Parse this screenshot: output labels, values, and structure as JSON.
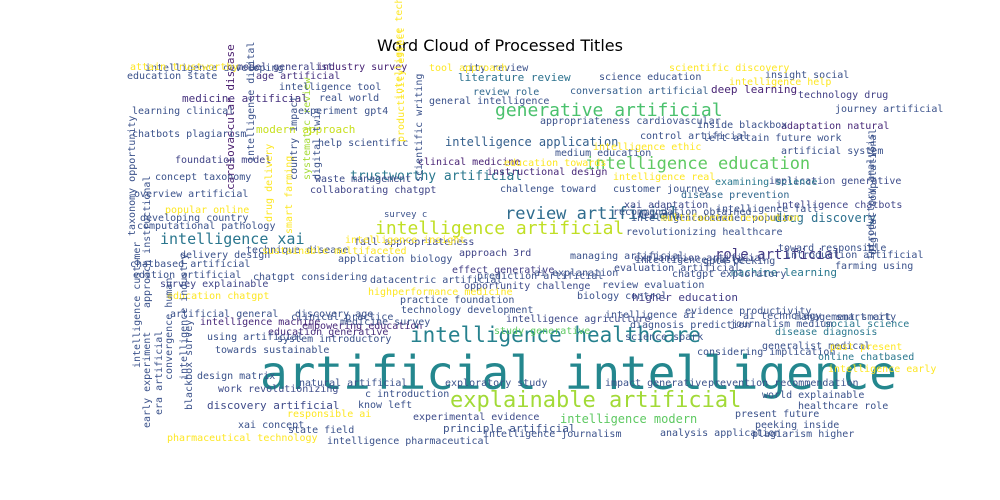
{
  "title": "Word Cloud of Processed Titles",
  "words": [
    {
      "text": "artificial intelligence",
      "color": "#24878e"
    },
    {
      "text": "explainable artificial",
      "color": "#a2da37"
    },
    {
      "text": "intelligence healthcare",
      "color": "#26818e"
    },
    {
      "text": "generative artificial",
      "color": "#4ac16d"
    },
    {
      "text": "intelligence artificial",
      "color": "#c0df25"
    },
    {
      "text": "review artificial",
      "color": "#2f6c8e"
    },
    {
      "text": "intelligence education",
      "color": "#5ec962"
    },
    {
      "text": "intelligence xai",
      "color": "#2a768e"
    },
    {
      "text": "role artificial",
      "color": "#443a83"
    },
    {
      "text": "trustworthy artificial",
      "color": "#2a788e"
    },
    {
      "text": "intelligence application",
      "color": "#35608d"
    },
    {
      "text": "drug discovery",
      "color": "#2d708e"
    },
    {
      "text": "intelligence modern",
      "color": "#5ec962"
    },
    {
      "text": "literature review",
      "color": "#2c728e"
    },
    {
      "text": "medicine artificial",
      "color": "#46327e"
    },
    {
      "text": "modern approach",
      "color": "#c8e020"
    },
    {
      "text": "discovery artificial",
      "color": "#3e4a89"
    },
    {
      "text": "higher education",
      "color": "#433e85"
    },
    {
      "text": "machine learning",
      "color": "#2a788e"
    },
    {
      "text": "principle artificial",
      "color": "#3b528b"
    },
    {
      "text": "cardiovascular disease",
      "color": "#481c6e"
    },
    {
      "text": "deep learning",
      "color": "#482475"
    },
    {
      "text": "review role",
      "color": "#31688e"
    },
    {
      "text": "approach 3rd",
      "color": "#414487"
    },
    {
      "text": "intelligence chatbots",
      "color": "#404688"
    },
    {
      "text": "intelligence machine",
      "color": "#482878"
    },
    {
      "text": "survey explainable",
      "color": "#404688"
    },
    {
      "text": "disease diagnosis",
      "color": "#2a788e"
    },
    {
      "text": "age artificial",
      "color": "#46317e"
    },
    {
      "text": "intelligence ai",
      "color": "#3b528b"
    },
    {
      "text": "systematic review",
      "color": "#a5db36"
    },
    {
      "text": "fall appropriateness",
      "color": "#3e4989"
    },
    {
      "text": "education generative",
      "color": "#472e7c"
    },
    {
      "text": "conversation artificial",
      "color": "#355f8d"
    },
    {
      "text": "intelligence tool",
      "color": "#3b518b"
    },
    {
      "text": "explanation artificial",
      "color": "#3e4a89"
    },
    {
      "text": "evaluation artificial",
      "color": "#3c4f8a"
    },
    {
      "text": "digital twin",
      "color": "#3b528b"
    },
    {
      "text": "effect generative",
      "color": "#433e85"
    },
    {
      "text": "experimental evidence",
      "color": "#3e4c8a"
    },
    {
      "text": "application biology",
      "color": "#3b528b"
    },
    {
      "text": "industry survey",
      "color": "#482374"
    },
    {
      "text": "model generalist",
      "color": "#414487"
    },
    {
      "text": "journey artificial",
      "color": "#3b528b"
    },
    {
      "text": "technology drug",
      "color": "#424186"
    },
    {
      "text": "foundation model",
      "color": "#414487"
    },
    {
      "text": "concept taxonomy",
      "color": "#3b528b"
    },
    {
      "text": "clinical medicine",
      "color": "#482173"
    },
    {
      "text": "waste management",
      "color": "#3e4c8a"
    },
    {
      "text": "collaborating chatgpt",
      "color": "#404588"
    },
    {
      "text": "instructional design",
      "color": "#482878"
    },
    {
      "text": "challenge toward",
      "color": "#3b528b"
    },
    {
      "text": "customer journey",
      "color": "#3b528b"
    },
    {
      "text": "xai adaptation",
      "color": "#3e4a89"
    },
    {
      "text": "disease prevention",
      "color": "#31688e"
    },
    {
      "text": "implication generative",
      "color": "#3e4c8a"
    },
    {
      "text": "control artificial",
      "color": "#3b528b"
    },
    {
      "text": "adaptation natural",
      "color": "#482878"
    },
    {
      "text": "artificial system",
      "color": "#3b528b"
    },
    {
      "text": "evidence productivity",
      "color": "#3b528b"
    },
    {
      "text": "intelligence agriculture",
      "color": "#3e4a89"
    },
    {
      "text": "study generative",
      "color": "#5ec962"
    },
    {
      "text": "opportunity challenge",
      "color": "#3e4c8a"
    },
    {
      "text": "prediction artificial",
      "color": "#3b528b"
    },
    {
      "text": "practice foundation",
      "color": "#3b528b"
    },
    {
      "text": "technology development",
      "color": "#3b528b"
    },
    {
      "text": "artificial general",
      "color": "#3b528b"
    },
    {
      "text": "discovery age",
      "color": "#3b528b"
    },
    {
      "text": "empowering education",
      "color": "#482878"
    },
    {
      "text": "system introductory",
      "color": "#3b528b"
    },
    {
      "text": "using artificial",
      "color": "#3b528b"
    },
    {
      "text": "towards sustainable",
      "color": "#3b528b"
    },
    {
      "text": "design matrix",
      "color": "#3b528b"
    },
    {
      "text": "work revolutionizing",
      "color": "#3e4c8a"
    },
    {
      "text": "natural artificial",
      "color": "#3b528b"
    },
    {
      "text": "exploratory study",
      "color": "#3b528b"
    },
    {
      "text": "impact generative",
      "color": "#3b528b"
    },
    {
      "text": "prevention recommendation",
      "color": "#3b528b"
    },
    {
      "text": "world explainable",
      "color": "#3b528b"
    },
    {
      "text": "healthcare role",
      "color": "#3b528b"
    },
    {
      "text": "present future",
      "color": "#3b528b"
    },
    {
      "text": "peeking inside",
      "color": "#3b528b"
    },
    {
      "text": "plagiarism higher",
      "color": "#3b528b"
    },
    {
      "text": "analysis application",
      "color": "#3b528b"
    },
    {
      "text": "intelligence journalism",
      "color": "#3b528b"
    },
    {
      "text": "intelligence pharmaceutical",
      "color": "#3b528b"
    },
    {
      "text": "state field",
      "color": "#3b528b"
    },
    {
      "text": "xai concept",
      "color": "#3b528b"
    },
    {
      "text": "know left",
      "color": "#3b528b"
    },
    {
      "text": "c introduction",
      "color": "#3b528b"
    },
    {
      "text": "pharmaceutical technology",
      "color": "#fde725"
    },
    {
      "text": "responsible ai",
      "color": "#fde725"
    },
    {
      "text": "management smart",
      "color": "#3b528b"
    },
    {
      "text": "smart city",
      "color": "#3b528b"
    },
    {
      "text": "social science",
      "color": "#2a788e"
    },
    {
      "text": "journalism medium",
      "color": "#3b528b"
    },
    {
      "text": "generalist medical",
      "color": "#3b528b"
    },
    {
      "text": "considering implication",
      "color": "#3b528b"
    },
    {
      "text": "online chatbased",
      "color": "#2a788e"
    },
    {
      "text": "past present",
      "color": "#fde725"
    },
    {
      "text": "intelligence early",
      "color": "#fde725"
    },
    {
      "text": "introduction artificial",
      "color": "#3b528b"
    },
    {
      "text": "toward responsible",
      "color": "#3b528b"
    },
    {
      "text": "farming using",
      "color": "#3b528b"
    },
    {
      "text": "chatgpt exploratory",
      "color": "#3b528b"
    },
    {
      "text": "gpt4 peeking",
      "color": "#3b528b"
    },
    {
      "text": "intelligence waste",
      "color": "#3b528b"
    },
    {
      "text": "intelligence new",
      "color": "#3b528b"
    },
    {
      "text": "obtained popular",
      "color": "#3b528b"
    },
    {
      "text": "new era",
      "color": "#3b528b"
    },
    {
      "text": "recommendation obtained",
      "color": "#3b528b"
    },
    {
      "text": "multifaceted revolution",
      "color": "#fde725"
    },
    {
      "text": "revolutionizing healthcare",
      "color": "#3b528b"
    },
    {
      "text": "examining science",
      "color": "#2a788e"
    },
    {
      "text": "intelligence real",
      "color": "#fde725"
    },
    {
      "text": "intelligence fall",
      "color": "#3b528b"
    },
    {
      "text": "inside blackbox",
      "color": "#3b528b"
    },
    {
      "text": "left attain future work",
      "color": "#3b528b"
    },
    {
      "text": "insight social",
      "color": "#3b528b"
    },
    {
      "text": "intelligence help",
      "color": "#fde725"
    },
    {
      "text": "science education",
      "color": "#3b528b"
    },
    {
      "text": "scientific discovery",
      "color": "#fde725"
    },
    {
      "text": "city review",
      "color": "#3b528b"
    },
    {
      "text": "tool approach",
      "color": "#fde725"
    },
    {
      "text": "general intelligence",
      "color": "#3b528b"
    },
    {
      "text": "appropriateness cardiovascular",
      "color": "#3b528b"
    },
    {
      "text": "intelligence ethic",
      "color": "#fde725"
    },
    {
      "text": "medium education",
      "color": "#3b528b"
    },
    {
      "text": "education towards",
      "color": "#fde725"
    },
    {
      "text": "help scientific",
      "color": "#3b528b"
    },
    {
      "text": "real world",
      "color": "#3b528b"
    },
    {
      "text": "experiment gpt4",
      "color": "#3b528b"
    },
    {
      "text": "learning clinical",
      "color": "#3b528b"
    },
    {
      "text": "chatbots plagiarism",
      "color": "#3b528b"
    },
    {
      "text": "education state",
      "color": "#3b528b"
    },
    {
      "text": "intelligence developing",
      "color": "#3b528b"
    },
    {
      "text": "attain trustworthy",
      "color": "#fde725"
    },
    {
      "text": "overview artificial",
      "color": "#3b528b"
    },
    {
      "text": "popular online",
      "color": "#fde725"
    },
    {
      "text": "developing country",
      "color": "#3b528b"
    },
    {
      "text": "computational pathology",
      "color": "#3b528b"
    },
    {
      "text": "delivery design",
      "color": "#3b528b"
    },
    {
      "text": "chatbased artificial",
      "color": "#3b528b"
    },
    {
      "text": "edition artificial",
      "color": "#3b528b"
    },
    {
      "text": "education chatgpt",
      "color": "#fde725"
    },
    {
      "text": "chatgpt considering",
      "color": "#3b528b"
    },
    {
      "text": "technique disease",
      "color": "#3b528b"
    },
    {
      "text": "sustainable multifaceted",
      "color": "#fde725"
    },
    {
      "text": "datacentric artificial",
      "color": "#3b528b"
    },
    {
      "text": "highperformance medicine",
      "color": "#fde725"
    },
    {
      "text": "managing artificial",
      "color": "#3b528b"
    },
    {
      "text": "ai explanation",
      "color": "#3b528b"
    },
    {
      "text": "biology control",
      "color": "#3b528b"
    },
    {
      "text": "review evaluation",
      "color": "#3b528b"
    },
    {
      "text": "science spark",
      "color": "#3b528b"
    },
    {
      "text": "diagnosis prediction",
      "color": "#3b528b"
    },
    {
      "text": "ai technology",
      "color": "#3b528b"
    },
    {
      "text": "clinical practice",
      "color": "#3b528b"
    },
    {
      "text": "medicine survey",
      "color": "#3b528b"
    },
    {
      "text": "intelligence insight",
      "color": "#fde725"
    },
    {
      "text": "drug delivery",
      "color": "#fde725"
    },
    {
      "text": "smart farming",
      "color": "#fde725"
    },
    {
      "text": "country impact",
      "color": "#3b528b"
    },
    {
      "text": "intelligence digital",
      "color": "#3b528b"
    },
    {
      "text": "productivity effect",
      "color": "#fde725"
    },
    {
      "text": "scientific writing",
      "color": "#3b528b"
    },
    {
      "text": "taxonomy opportunity",
      "color": "#3b528b"
    },
    {
      "text": "intelligence customer",
      "color": "#3b528b"
    },
    {
      "text": "approach instructional",
      "color": "#3b528b"
    },
    {
      "text": "convergence human",
      "color": "#3b528b"
    },
    {
      "text": "intelligence industry",
      "color": "#3b528b"
    },
    {
      "text": "blackbox survey",
      "color": "#3b528b"
    },
    {
      "text": "early experiment",
      "color": "#3b528b"
    },
    {
      "text": "era artificial",
      "color": "#3b528b"
    },
    {
      "text": "digital computational",
      "color": "#3b528b"
    },
    {
      "text": "introductory analysis",
      "color": "#3b528b"
    },
    {
      "text": "intelligence technique",
      "color": "#fde725"
    },
    {
      "text": "survey c",
      "color": "#3b528b"
    }
  ]
}
